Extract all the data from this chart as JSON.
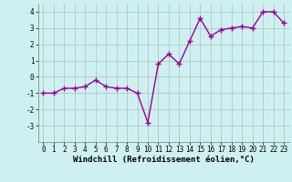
{
  "x": [
    0,
    1,
    2,
    3,
    4,
    5,
    6,
    7,
    8,
    9,
    10,
    11,
    12,
    13,
    14,
    15,
    16,
    17,
    18,
    19,
    20,
    21,
    22,
    23
  ],
  "y": [
    -1.0,
    -1.0,
    -0.7,
    -0.7,
    -0.6,
    -0.2,
    -0.6,
    -0.7,
    -0.7,
    -1.0,
    -2.8,
    0.8,
    1.4,
    0.8,
    2.2,
    3.6,
    2.5,
    2.9,
    3.0,
    3.1,
    3.0,
    4.0,
    4.0,
    3.3
  ],
  "line_color": "#990099",
  "marker": "+",
  "marker_size": 4,
  "bg_color": "#cff0f0",
  "grid_color": "#b0c8c8",
  "xlabel": "Windchill (Refroidissement éolien,°C)",
  "ylabel": "",
  "ylim": [
    -4,
    4.5
  ],
  "xlim": [
    -0.5,
    23.5
  ],
  "yticks": [
    -3,
    -2,
    -1,
    0,
    1,
    2,
    3,
    4
  ],
  "xticks": [
    0,
    1,
    2,
    3,
    4,
    5,
    6,
    7,
    8,
    9,
    10,
    11,
    12,
    13,
    14,
    15,
    16,
    17,
    18,
    19,
    20,
    21,
    22,
    23
  ],
  "tick_fontsize": 5.5,
  "xlabel_fontsize": 6.5,
  "linewidth": 1.0,
  "marker_linewidth": 1.0
}
